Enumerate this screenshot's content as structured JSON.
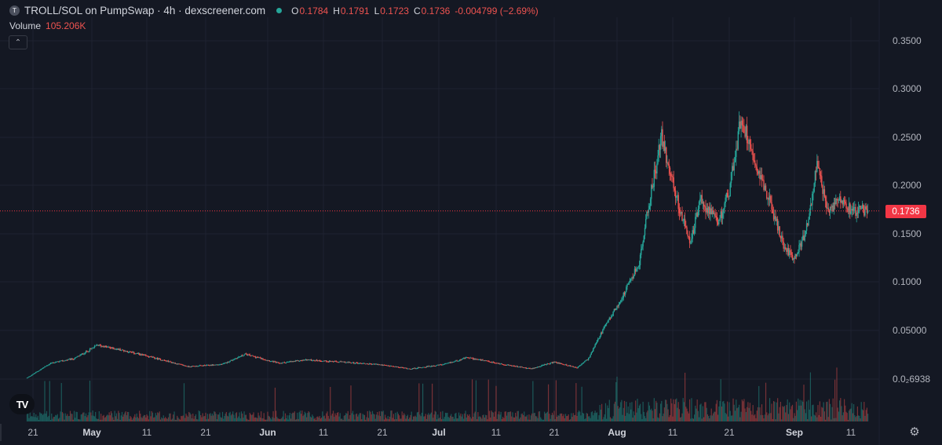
{
  "header": {
    "symbol_icon": "T",
    "title": "TROLL/SOL on PumpSwap · 4h · dexscreener.com",
    "ohlc": {
      "o_label": "O",
      "o_value": "0.1784",
      "h_label": "H",
      "h_value": "0.1791",
      "l_label": "L",
      "l_value": "0.1723",
      "c_label": "C",
      "c_value": "0.1736"
    },
    "change": "-0.004799 (−2.69%)",
    "volume_label": "Volume",
    "volume_value": "105.206K",
    "collapse_icon": "chevron-up-icon"
  },
  "colors": {
    "background": "#141823",
    "grid": "#1e2230",
    "up": "#26a69a",
    "down": "#ef5350",
    "price_line": "#f23645",
    "text": "#b2b5be"
  },
  "chart_data": {
    "type": "candlestick",
    "interval": "4h",
    "last_price": 0.1736,
    "last_price_label": "0.1736",
    "y_tick_labels": [
      {
        "value": 0.35,
        "label": "0.3500"
      },
      {
        "value": 0.3,
        "label": "0.3000"
      },
      {
        "value": 0.25,
        "label": "0.2500"
      },
      {
        "value": 0.2,
        "label": "0.2000"
      },
      {
        "value": 0.15,
        "label": "0.1500"
      },
      {
        "value": 0.1,
        "label": "0.1000"
      },
      {
        "value": 0.05,
        "label": "0.05000"
      },
      {
        "value": 0.006938,
        "label": "0.0₂6938"
      }
    ],
    "x_tick_labels": [
      {
        "label": "21",
        "bold": false
      },
      {
        "label": "May",
        "bold": true
      },
      {
        "label": "11",
        "bold": false
      },
      {
        "label": "21",
        "bold": false
      },
      {
        "label": "Jun",
        "bold": true
      },
      {
        "label": "11",
        "bold": false
      },
      {
        "label": "21",
        "bold": false
      },
      {
        "label": "Jul",
        "bold": true
      },
      {
        "label": "11",
        "bold": false
      },
      {
        "label": "21",
        "bold": false
      },
      {
        "label": "Aug",
        "bold": true
      },
      {
        "label": "11",
        "bold": false
      },
      {
        "label": "21",
        "bold": false
      },
      {
        "label": "Sep",
        "bold": true
      },
      {
        "label": "11",
        "bold": false
      }
    ],
    "price_trend": [
      {
        "date": "Apr 20",
        "close": 0.008
      },
      {
        "date": "Apr 24",
        "close": 0.021
      },
      {
        "date": "Apr 28",
        "close": 0.025
      },
      {
        "date": "May 2",
        "close": 0.037
      },
      {
        "date": "May 7",
        "close": 0.032
      },
      {
        "date": "May 12",
        "close": 0.026
      },
      {
        "date": "May 18",
        "close": 0.018
      },
      {
        "date": "May 24",
        "close": 0.02
      },
      {
        "date": "May 28",
        "close": 0.029
      },
      {
        "date": "Jun 3",
        "close": 0.021
      },
      {
        "date": "Jun 8",
        "close": 0.024
      },
      {
        "date": "Jun 14",
        "close": 0.022
      },
      {
        "date": "Jun 20",
        "close": 0.02
      },
      {
        "date": "Jun 26",
        "close": 0.016
      },
      {
        "date": "Jul 2",
        "close": 0.02
      },
      {
        "date": "Jul 6",
        "close": 0.026
      },
      {
        "date": "Jul 11",
        "close": 0.021
      },
      {
        "date": "Jul 17",
        "close": 0.016
      },
      {
        "date": "Jul 21",
        "close": 0.022
      },
      {
        "date": "Jul 25",
        "close": 0.017
      },
      {
        "date": "Jul 27",
        "close": 0.025
      },
      {
        "date": "Jul 29",
        "close": 0.045
      },
      {
        "date": "Aug 2",
        "close": 0.085
      },
      {
        "date": "Aug 5",
        "close": 0.12
      },
      {
        "date": "Aug 7",
        "close": 0.19
      },
      {
        "date": "Aug 9",
        "close": 0.25
      },
      {
        "date": "Aug 12",
        "close": 0.18
      },
      {
        "date": "Aug 14",
        "close": 0.14
      },
      {
        "date": "Aug 16",
        "close": 0.185
      },
      {
        "date": "Aug 19",
        "close": 0.16
      },
      {
        "date": "Aug 21",
        "close": 0.195
      },
      {
        "date": "Aug 23",
        "close": 0.27
      },
      {
        "date": "Aug 26",
        "close": 0.215
      },
      {
        "date": "Aug 28",
        "close": 0.18
      },
      {
        "date": "Aug 30",
        "close": 0.14
      },
      {
        "date": "Sep 1",
        "close": 0.125
      },
      {
        "date": "Sep 3",
        "close": 0.15
      },
      {
        "date": "Sep 5",
        "close": 0.22
      },
      {
        "date": "Sep 7",
        "close": 0.17
      },
      {
        "date": "Sep 9",
        "close": 0.19
      },
      {
        "date": "Sep 11",
        "close": 0.175
      },
      {
        "date": "Sep 14",
        "close": 0.1736
      }
    ]
  },
  "footer": {
    "logo_text": "TV",
    "settings_icon": "gear-icon"
  }
}
